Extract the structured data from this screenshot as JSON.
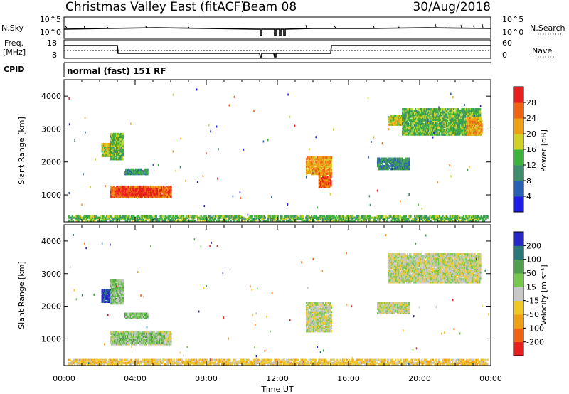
{
  "header": {
    "title": "Christmas Valley East (fitACF)",
    "beam": "Beam 08",
    "date": "30/Aug/2018"
  },
  "status_panel": {
    "nsky_label": "N.Sky",
    "nsearch_label": "N.Search",
    "freq_label_line1": "Freq.",
    "freq_label_line2": "[MHz]",
    "nave_label": "Nave",
    "cpid_label": "CPID",
    "cpid_value": "normal (fast) 151 RF",
    "noise_left_ticks": [
      "10^5",
      "10^0"
    ],
    "noise_right_ticks": [
      "10^5",
      "10^0"
    ],
    "freq_left_ticks": [
      "18",
      "8"
    ],
    "freq_right_ticks": [
      "60",
      "0"
    ]
  },
  "chart_data": [
    {
      "type": "heatmap",
      "name": "Power",
      "xlabel": "Time UT",
      "ylabel": "Slant Range [km]",
      "xlim": [
        0,
        24
      ],
      "ylim": [
        180,
        4500
      ],
      "x_ticks": [
        "00:00",
        "04:00",
        "08:00",
        "12:00",
        "16:00",
        "20:00",
        "00:00"
      ],
      "y_ticks": [
        1000,
        2000,
        3000,
        4000
      ],
      "colorbar_label": "Power [dB]",
      "colorbar_ticks": [
        "4",
        "8",
        "12",
        "16",
        "20",
        "24",
        "28"
      ],
      "colorbar_colors": [
        "#1e1ee6",
        "#2860b4",
        "#3e8c6e",
        "#3cb43c",
        "#d2d228",
        "#f0a014",
        "#f06414",
        "#e61e1e"
      ],
      "regions": [
        {
          "t0": 2.6,
          "t1": 6.0,
          "r0": 900,
          "r1": 1250,
          "level": 6
        },
        {
          "t0": 2.9,
          "t1": 5.2,
          "r0": 950,
          "r1": 1150,
          "level": 7
        },
        {
          "t0": 2.1,
          "t1": 2.6,
          "r0": 2150,
          "r1": 2550,
          "level": 4
        },
        {
          "t0": 2.6,
          "t1": 3.3,
          "r0": 2050,
          "r1": 2850,
          "level": 3
        },
        {
          "t0": 3.4,
          "t1": 4.7,
          "r0": 1600,
          "r1": 1780,
          "level": 2
        },
        {
          "t0": 13.6,
          "t1": 15.0,
          "r0": 1600,
          "r1": 2100,
          "level": 5
        },
        {
          "t0": 14.3,
          "t1": 15.0,
          "r0": 1200,
          "r1": 1650,
          "level": 6
        },
        {
          "t0": 17.6,
          "t1": 19.4,
          "r0": 1750,
          "r1": 2100,
          "level": 2
        },
        {
          "t0": 18.2,
          "t1": 19.0,
          "r0": 3100,
          "r1": 3400,
          "level": 4
        },
        {
          "t0": 19.0,
          "t1": 23.4,
          "r0": 2800,
          "r1": 3600,
          "level": 3
        },
        {
          "t0": 22.6,
          "t1": 23.5,
          "r0": 2800,
          "r1": 3300,
          "level": 5
        },
        {
          "t0": 0.2,
          "t1": 23.8,
          "r0": 180,
          "r1": 350,
          "level": 3
        }
      ]
    },
    {
      "type": "heatmap",
      "name": "Velocity",
      "xlabel": "Time UT",
      "ylabel": "Slant Range [km]",
      "xlim": [
        0,
        24
      ],
      "ylim": [
        180,
        4500
      ],
      "x_ticks": [
        "00:00",
        "04:00",
        "08:00",
        "12:00",
        "16:00",
        "20:00",
        "00:00"
      ],
      "y_ticks": [
        1000,
        2000,
        3000,
        4000
      ],
      "colorbar_label": "Velocity [m s⁻¹]",
      "colorbar_ticks": [
        "200",
        "100",
        "50",
        "15",
        "-15",
        "-50",
        "-100",
        "-200"
      ],
      "colorbar_colors": [
        "#2828c8",
        "#287878",
        "#50a050",
        "#78c850",
        "#c8c8c8",
        "#f0c828",
        "#f0a014",
        "#f06414",
        "#e61e1e"
      ],
      "regions": [
        {
          "t0": 2.6,
          "t1": 6.0,
          "r0": 800,
          "r1": 1200,
          "level": 4
        },
        {
          "t0": 2.8,
          "t1": 5.6,
          "r0": 850,
          "r1": 1150,
          "level": 3
        },
        {
          "t0": 2.1,
          "t1": 2.6,
          "r0": 2100,
          "r1": 2500,
          "level": 0
        },
        {
          "t0": 2.6,
          "t1": 3.3,
          "r0": 2050,
          "r1": 2800,
          "level": 3
        },
        {
          "t0": 3.4,
          "t1": 4.7,
          "r0": 1600,
          "r1": 1780,
          "level": 3
        },
        {
          "t0": 13.6,
          "t1": 15.0,
          "r0": 1200,
          "r1": 2100,
          "level": 4
        },
        {
          "t0": 17.6,
          "t1": 19.4,
          "r0": 1750,
          "r1": 2100,
          "level": 4
        },
        {
          "t0": 18.2,
          "t1": 23.4,
          "r0": 2700,
          "r1": 3600,
          "level": 4
        },
        {
          "t0": 0.2,
          "t1": 23.8,
          "r0": 180,
          "r1": 350,
          "level": 5
        }
      ]
    }
  ]
}
